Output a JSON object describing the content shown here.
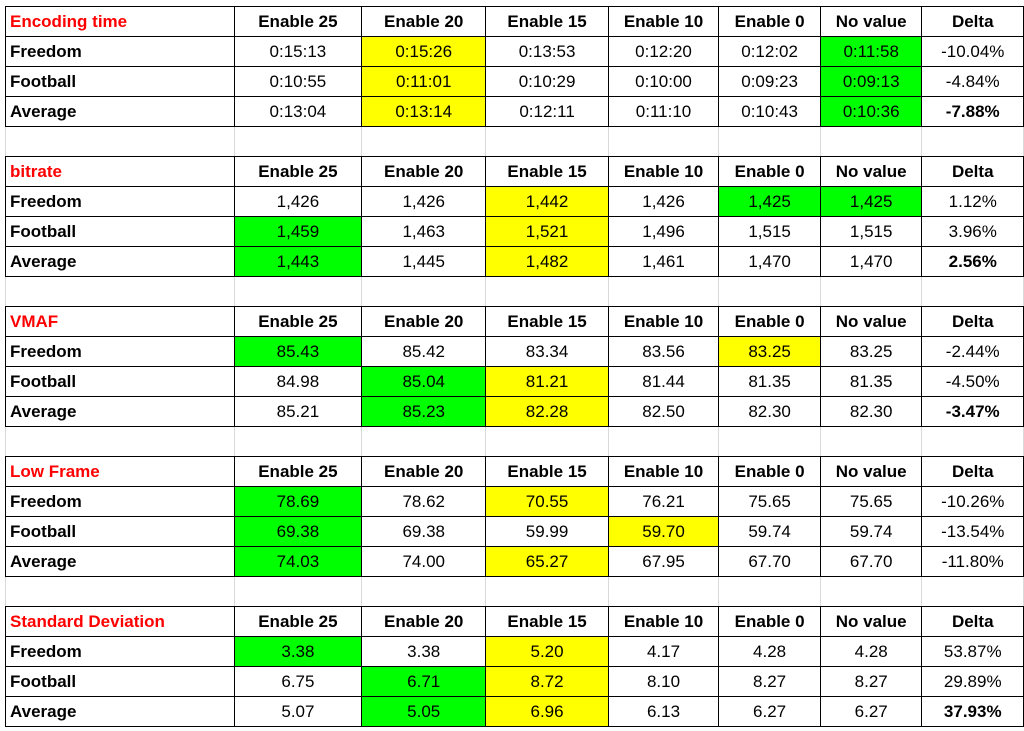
{
  "columns": [
    "Enable 25",
    "Enable 20",
    "Enable 15",
    "Enable 10",
    "Enable 0",
    "No value",
    "Delta"
  ],
  "highlight_colors": {
    "best": "#00ff00",
    "highlight": "#ffff00",
    "section_title": "#ff0000"
  },
  "sections": [
    {
      "title": "Encoding time",
      "rows": [
        {
          "label": "Freedom",
          "values": [
            "0:15:13",
            "0:15:26",
            "0:13:53",
            "0:12:20",
            "0:12:02",
            "0:11:58",
            "-10.04%"
          ]
        },
        {
          "label": "Football",
          "values": [
            "0:10:55",
            "0:11:01",
            "0:10:29",
            "0:10:00",
            "0:09:23",
            "0:09:13",
            "-4.84%"
          ]
        },
        {
          "label": "Average",
          "values": [
            "0:13:04",
            "0:13:14",
            "0:12:11",
            "0:11:10",
            "0:10:43",
            "0:10:36",
            "-7.88%"
          ]
        }
      ]
    },
    {
      "title": "bitrate",
      "rows": [
        {
          "label": "Freedom",
          "values": [
            "1,426",
            "1,426",
            "1,442",
            "1,426",
            "1,425",
            "1,425",
            "1.12%"
          ]
        },
        {
          "label": "Football",
          "values": [
            "1,459",
            "1,463",
            "1,521",
            "1,496",
            "1,515",
            "1,515",
            "3.96%"
          ]
        },
        {
          "label": "Average",
          "values": [
            "1,443",
            "1,445",
            "1,482",
            "1,461",
            "1,470",
            "1,470",
            "2.56%"
          ]
        }
      ]
    },
    {
      "title": "VMAF",
      "rows": [
        {
          "label": "Freedom",
          "values": [
            "85.43",
            "85.42",
            "83.34",
            "83.56",
            "83.25",
            "83.25",
            "-2.44%"
          ]
        },
        {
          "label": "Football",
          "values": [
            "84.98",
            "85.04",
            "81.21",
            "81.44",
            "81.35",
            "81.35",
            "-4.50%"
          ]
        },
        {
          "label": "Average",
          "values": [
            "85.21",
            "85.23",
            "82.28",
            "82.50",
            "82.30",
            "82.30",
            "-3.47%"
          ]
        }
      ]
    },
    {
      "title": "Low Frame",
      "rows": [
        {
          "label": "Freedom",
          "values": [
            "78.69",
            "78.62",
            "70.55",
            "76.21",
            "75.65",
            "75.65",
            "-10.26%"
          ]
        },
        {
          "label": "Football",
          "values": [
            "69.38",
            "69.38",
            "59.99",
            "59.70",
            "59.74",
            "59.74",
            "-13.54%"
          ]
        },
        {
          "label": "Average",
          "values": [
            "74.03",
            "74.00",
            "65.27",
            "67.95",
            "67.70",
            "67.70",
            "-11.80%"
          ]
        }
      ]
    },
    {
      "title": "Standard Deviation",
      "rows": [
        {
          "label": "Freedom",
          "values": [
            "3.38",
            "3.38",
            "5.20",
            "4.17",
            "4.28",
            "4.28",
            "53.87%"
          ]
        },
        {
          "label": "Football",
          "values": [
            "6.75",
            "6.71",
            "8.72",
            "8.10",
            "8.27",
            "8.27",
            "29.89%"
          ]
        },
        {
          "label": "Average",
          "values": [
            "5.07",
            "5.05",
            "6.96",
            "6.13",
            "6.27",
            "6.27",
            "37.93%"
          ]
        }
      ]
    }
  ]
}
